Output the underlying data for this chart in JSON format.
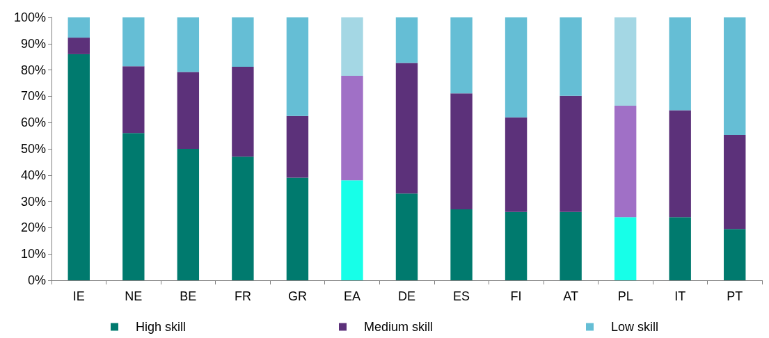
{
  "chart_data": {
    "type": "bar",
    "stacked": true,
    "categories": [
      "IE",
      "NE",
      "BE",
      "FR",
      "GR",
      "EA",
      "DE",
      "ES",
      "FI",
      "AT",
      "PL",
      "IT",
      "PT"
    ],
    "series": [
      {
        "name": "High skill",
        "color": "#007a6e",
        "colors": [
          "#007a6e",
          "#007a6e",
          "#007a6e",
          "#007a6e",
          "#007a6e",
          "#17ffe8",
          "#007a6e",
          "#007a6e",
          "#007a6e",
          "#007a6e",
          "#17ffe8",
          "#007a6e",
          "#007a6e"
        ],
        "values": [
          86,
          56,
          50,
          47,
          39,
          38,
          33,
          27,
          26,
          26,
          24,
          24,
          19.5
        ]
      },
      {
        "name": "Medium skill",
        "color": "#5c317a",
        "colors": [
          "#5c317a",
          "#5c317a",
          "#5c317a",
          "#5c317a",
          "#5c317a",
          "#a070c6",
          "#5c317a",
          "#5c317a",
          "#5c317a",
          "#5c317a",
          "#a070c6",
          "#5c317a",
          "#5c317a"
        ],
        "values": [
          6.3,
          25.4,
          29.2,
          34.2,
          23.5,
          39.8,
          49.7,
          44.1,
          36,
          44.2,
          42.4,
          40.7,
          35.8
        ]
      },
      {
        "name": "Low skill",
        "color": "#65bed5",
        "colors": [
          "#65bed5",
          "#65bed5",
          "#65bed5",
          "#65bed5",
          "#65bed5",
          "#a4d7e4",
          "#65bed5",
          "#65bed5",
          "#65bed5",
          "#65bed5",
          "#a4d7e4",
          "#65bed5",
          "#65bed5"
        ],
        "values": [
          7.7,
          18.6,
          20.8,
          18.8,
          37.5,
          22.2,
          17.3,
          28.9,
          38,
          29.8,
          33.6,
          35.3,
          44.7
        ]
      }
    ],
    "ylim": [
      0,
      100
    ],
    "yticks": [
      {
        "value": 0,
        "label": "0%"
      },
      {
        "value": 10,
        "label": "10%"
      },
      {
        "value": 20,
        "label": "20%"
      },
      {
        "value": 30,
        "label": "30%"
      },
      {
        "value": 40,
        "label": "40%"
      },
      {
        "value": 50,
        "label": "50%"
      },
      {
        "value": 60,
        "label": "60%"
      },
      {
        "value": 70,
        "label": "70%"
      },
      {
        "value": 80,
        "label": "80%"
      },
      {
        "value": 90,
        "label": "90%"
      },
      {
        "value": 100,
        "label": "100%"
      }
    ],
    "grid": false,
    "legend": "bottom"
  }
}
